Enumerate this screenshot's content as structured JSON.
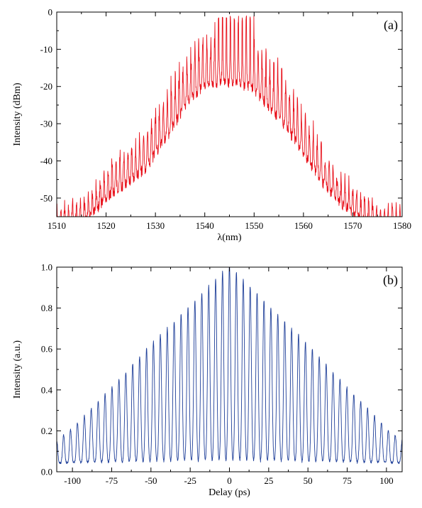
{
  "chart_data": [
    {
      "type": "line",
      "panel_label": "(a)",
      "xlabel": "λ(nm)",
      "ylabel": "Intensity (dBm)",
      "xlim": [
        1510,
        1580
      ],
      "ylim": [
        -55,
        0
      ],
      "x_ticks": [
        1510,
        1520,
        1530,
        1540,
        1550,
        1560,
        1570,
        1580
      ],
      "y_ticks": [
        0,
        -10,
        -20,
        -30,
        -40,
        -50
      ],
      "x_tick_labels": [
        "1510",
        "1520",
        "1530",
        "1540",
        "1550",
        "1560",
        "1570",
        "1580"
      ],
      "y_tick_labels": [
        "0",
        "-10",
        "-20",
        "-30",
        "-40",
        "-50"
      ],
      "grid": false,
      "color": "#e8101a",
      "series": [
        {
          "x": [
            1510,
            1512,
            1514,
            1516,
            1518,
            1520,
            1522,
            1524,
            1526,
            1528,
            1530,
            1532,
            1534,
            1536,
            1538,
            1540,
            1542,
            1543,
            1544,
            1545,
            1546,
            1547,
            1548,
            1549,
            1550,
            1552,
            1554,
            1556,
            1558,
            1560,
            1562,
            1564,
            1566,
            1568,
            1570,
            1572,
            1574,
            1576,
            1578,
            1580
          ],
          "y": [
            -55,
            -55,
            -54,
            -53,
            -50,
            -47,
            -45,
            -43,
            -41,
            -39,
            -35,
            -31,
            -27,
            -22,
            -19,
            -17,
            -16,
            -16,
            -16,
            -16,
            -16,
            -16,
            -17,
            -17,
            -18,
            -21,
            -24,
            -27,
            -31,
            -35,
            -39,
            -43,
            -46,
            -49,
            -51,
            -53,
            -54,
            -55,
            -55,
            -55
          ]
        }
      ]
    },
    {
      "type": "line",
      "panel_label": "(b)",
      "xlabel": "Delay (ps)",
      "ylabel": "Intensity (a.u.)",
      "xlim": [
        -110,
        110
      ],
      "ylim": [
        0,
        1.0
      ],
      "x_ticks": [
        -100,
        -75,
        -50,
        -25,
        0,
        25,
        50,
        75,
        100
      ],
      "y_ticks": [
        0,
        0.2,
        0.4,
        0.6,
        0.8,
        1.0
      ],
      "x_tick_labels": [
        "-100",
        "-75",
        "-50",
        "-25",
        "0",
        "25",
        "50",
        "75",
        "100"
      ],
      "y_tick_labels": [
        "0.0",
        "0.2",
        "0.4",
        "0.6",
        "0.8",
        "1.0"
      ],
      "grid": false,
      "color": "#1f3f99",
      "peak_spacing": 4.4,
      "series": [
        {
          "x": [
            -110,
            -100,
            -75,
            -50,
            -25,
            0,
            25,
            50,
            75,
            100,
            110
          ],
          "y": [
            0.14,
            0.2,
            0.4,
            0.61,
            0.8,
            1.0,
            0.8,
            0.61,
            0.4,
            0.2,
            0.14
          ]
        }
      ]
    }
  ]
}
